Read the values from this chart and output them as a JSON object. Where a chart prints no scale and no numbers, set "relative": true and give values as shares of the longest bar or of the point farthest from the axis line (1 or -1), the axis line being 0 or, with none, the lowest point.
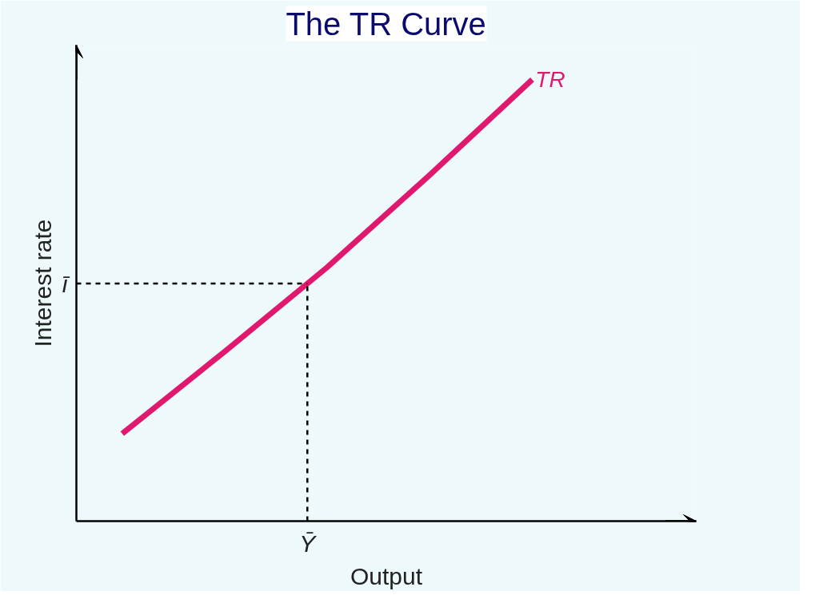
{
  "chart_data": {
    "type": "line",
    "title": "The TR Curve",
    "xlabel": "Output",
    "ylabel": "Interest rate",
    "relative": true,
    "categories": [
      null,
      null,
      null,
      null,
      null
    ],
    "series": [
      {
        "name": "TR",
        "color": "#e0196e",
        "values": [
          0.198,
          0.384,
          0.575,
          0.784,
          1.0
        ]
      }
    ],
    "ref_lines": [
      {
        "axis": "y",
        "value": 0.538,
        "label": "ī",
        "color": "#000000",
        "line_style": "dashed"
      }
    ],
    "annotations": [
      "Ȳ"
    ],
    "line_style": "solid"
  }
}
